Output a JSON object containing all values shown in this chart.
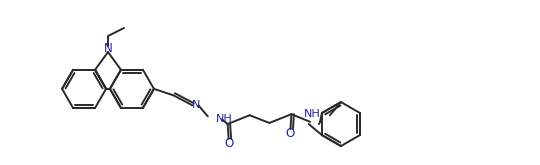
{
  "background_color": "#ffffff",
  "line_color": "#2a2a2a",
  "lw": 1.4,
  "atoms": {
    "N_carbazole": {
      "label": "N",
      "color": "#3333cc"
    },
    "N_hydrazone": {
      "label": "N",
      "color": "#3333cc"
    },
    "NH_hydrazide": {
      "label": "NH",
      "color": "#3333cc"
    },
    "O1": {
      "label": "O",
      "color": "#3333cc"
    },
    "NH_amide": {
      "label": "NH",
      "color": "#3333cc"
    },
    "O2": {
      "label": "O",
      "color": "#3333cc"
    }
  }
}
